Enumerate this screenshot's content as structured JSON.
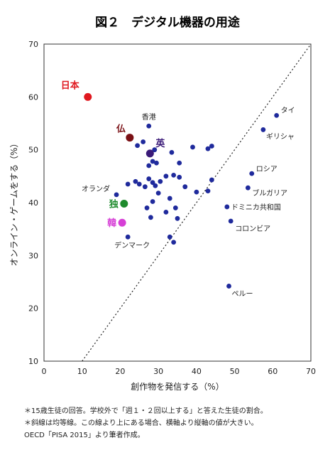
{
  "chart_data": {
    "type": "scatter",
    "title": "図２　デジタル機器の用途",
    "xlabel": "創作物を発信する（%）",
    "ylabel": "オンライン・ゲームをする（%）",
    "xlim": [
      0,
      70
    ],
    "ylim": [
      10,
      70
    ],
    "xticks": [
      "0",
      "10",
      "20",
      "30",
      "40",
      "50",
      "60",
      "70"
    ],
    "yticks": [
      "10",
      "20",
      "30",
      "40",
      "50",
      "60",
      "70"
    ],
    "reference_line": "y = x (dotted)",
    "colors": {
      "default": "#1f2a9c",
      "japan": "#e0181f",
      "france": "#7a1015",
      "uk": "#3a1a78",
      "germany": "#1e8a2c",
      "korea": "#d63fd6"
    },
    "highlighted": [
      {
        "label": "日本",
        "x": 11.5,
        "y": 60.0,
        "color": "#e0181f"
      },
      {
        "label": "仏",
        "x": 22.5,
        "y": 52.3,
        "color": "#7a1015"
      },
      {
        "label": "英",
        "x": 27.8,
        "y": 49.3,
        "color": "#3a1a78"
      },
      {
        "label": "独",
        "x": 21.0,
        "y": 39.8,
        "color": "#1e8a2c"
      },
      {
        "label": "韓",
        "x": 20.5,
        "y": 36.2,
        "color": "#d63fd6"
      }
    ],
    "labeled_points": [
      {
        "label": "香港",
        "x": 27.5,
        "y": 54.5
      },
      {
        "label": "タイ",
        "x": 61.0,
        "y": 56.5
      },
      {
        "label": "ギリシャ",
        "x": 57.5,
        "y": 53.8
      },
      {
        "label": "ロシア",
        "x": 54.5,
        "y": 45.5
      },
      {
        "label": "ブルガリア",
        "x": 53.5,
        "y": 42.8
      },
      {
        "label": "ドミニカ共和国",
        "x": 48.0,
        "y": 39.2
      },
      {
        "label": "コロンビア",
        "x": 49.0,
        "y": 36.5
      },
      {
        "label": "ペルー",
        "x": 48.5,
        "y": 24.2
      },
      {
        "label": "オランダ",
        "x": 19.0,
        "y": 41.5
      },
      {
        "label": "デンマーク",
        "x": 22.0,
        "y": 33.5
      }
    ],
    "other_points": [
      {
        "x": 26.0,
        "y": 51.5
      },
      {
        "x": 24.5,
        "y": 50.8
      },
      {
        "x": 29.0,
        "y": 50.0
      },
      {
        "x": 28.5,
        "y": 47.8
      },
      {
        "x": 27.5,
        "y": 47.0
      },
      {
        "x": 29.5,
        "y": 47.5
      },
      {
        "x": 33.5,
        "y": 49.5
      },
      {
        "x": 35.5,
        "y": 47.5
      },
      {
        "x": 39.0,
        "y": 50.5
      },
      {
        "x": 43.0,
        "y": 50.2
      },
      {
        "x": 44.0,
        "y": 50.7
      },
      {
        "x": 24.0,
        "y": 44.0
      },
      {
        "x": 25.0,
        "y": 43.5
      },
      {
        "x": 26.5,
        "y": 43.0
      },
      {
        "x": 27.5,
        "y": 44.5
      },
      {
        "x": 28.5,
        "y": 43.8
      },
      {
        "x": 29.2,
        "y": 43.2
      },
      {
        "x": 30.5,
        "y": 44.0
      },
      {
        "x": 32.0,
        "y": 45.0
      },
      {
        "x": 34.0,
        "y": 45.2
      },
      {
        "x": 35.5,
        "y": 44.8
      },
      {
        "x": 37.0,
        "y": 43.0
      },
      {
        "x": 40.0,
        "y": 42.0
      },
      {
        "x": 43.0,
        "y": 42.2
      },
      {
        "x": 44.0,
        "y": 44.3
      },
      {
        "x": 22.0,
        "y": 43.5
      },
      {
        "x": 30.0,
        "y": 41.8
      },
      {
        "x": 33.0,
        "y": 40.8
      },
      {
        "x": 28.5,
        "y": 40.2
      },
      {
        "x": 27.0,
        "y": 39.0
      },
      {
        "x": 32.0,
        "y": 38.2
      },
      {
        "x": 34.5,
        "y": 39.0
      },
      {
        "x": 28.0,
        "y": 37.2
      },
      {
        "x": 33.0,
        "y": 33.5
      },
      {
        "x": 34.0,
        "y": 32.5
      },
      {
        "x": 35.0,
        "y": 37.0
      }
    ]
  },
  "notes": [
    "＊15歳生徒の回答。学校外で「週１・２回以上する」と答えた生徒の割合。",
    "＊斜線は均等線。この線より上にある場合、横軸より縦軸の値が大きい。",
    "OECD「PISA 2015」より筆者作成。"
  ]
}
